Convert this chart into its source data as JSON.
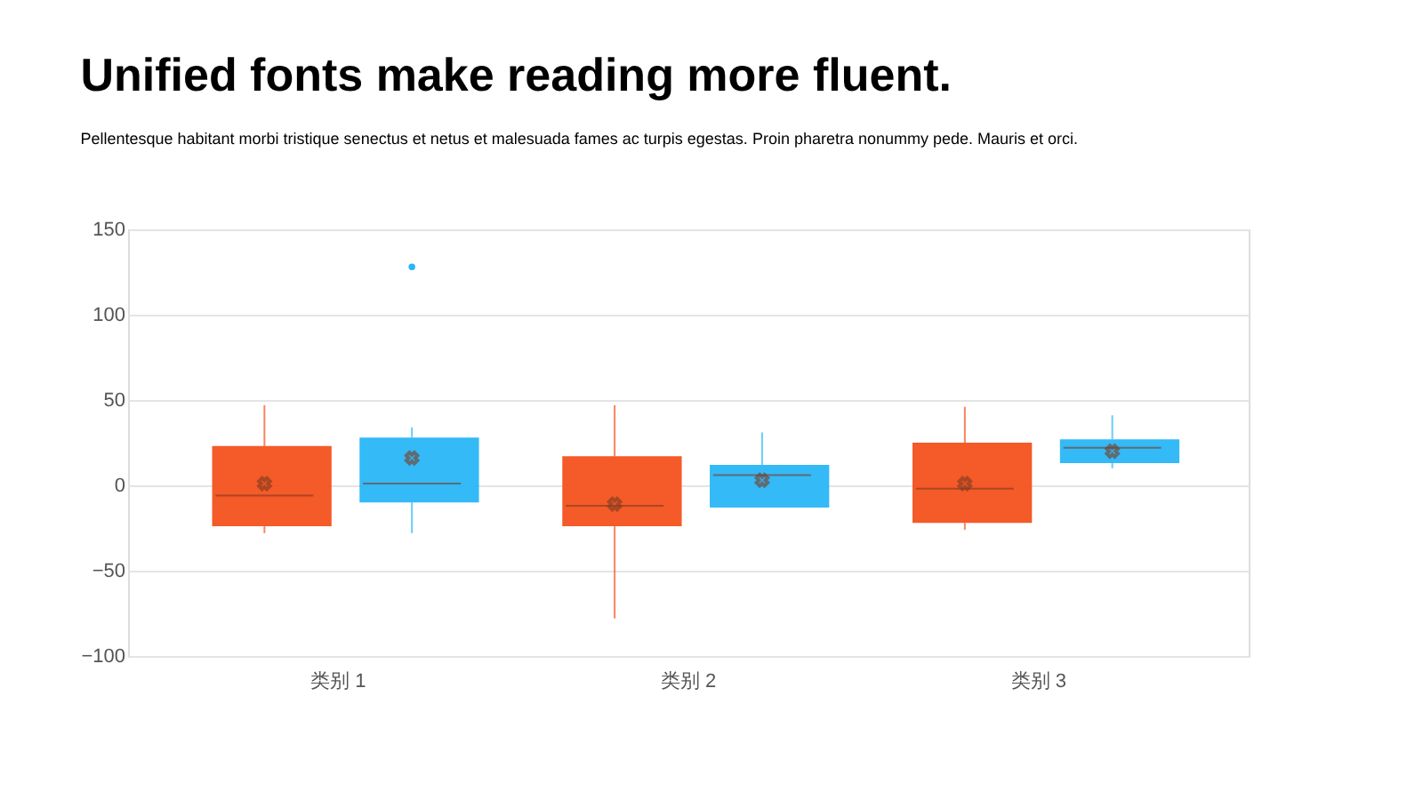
{
  "chart_data": {
    "type": "box",
    "title": "Unified fonts make reading more fluent.",
    "subtitle": "Pellentesque  habitant morbi tristique senectus  et netus et malesuada  fames ac turpis egestas. Proin pharetra nonummy  pede. Mauris et orci.",
    "categories": [
      "类别 1",
      "类别 2",
      "类别 3"
    ],
    "series": [
      {
        "color": "#f4511e",
        "boxes": [
          {
            "low": -28,
            "q1": -24,
            "median": -6,
            "q3": 23,
            "high": 47,
            "mean": 1
          },
          {
            "low": -78,
            "q1": -24,
            "median": -12,
            "q3": 17,
            "high": 47,
            "mean": -11
          },
          {
            "low": -26,
            "q1": -22,
            "median": -2,
            "q3": 25,
            "high": 46,
            "mean": 1
          }
        ]
      },
      {
        "color": "#29b6f6",
        "boxes": [
          {
            "low": -28,
            "q1": -10,
            "median": 1,
            "q3": 28,
            "high": 34,
            "mean": 16,
            "outliers": [
              128
            ]
          },
          {
            "low": -13,
            "q1": -13,
            "median": 6,
            "q3": 12,
            "high": 31,
            "mean": 3
          },
          {
            "low": 10,
            "q1": 13,
            "median": 22,
            "q3": 27,
            "high": 41,
            "mean": 20
          }
        ]
      }
    ],
    "ylim": [
      -100,
      150
    ],
    "yticks": [
      -100,
      -50,
      0,
      50,
      100,
      150
    ],
    "grid": "y"
  }
}
